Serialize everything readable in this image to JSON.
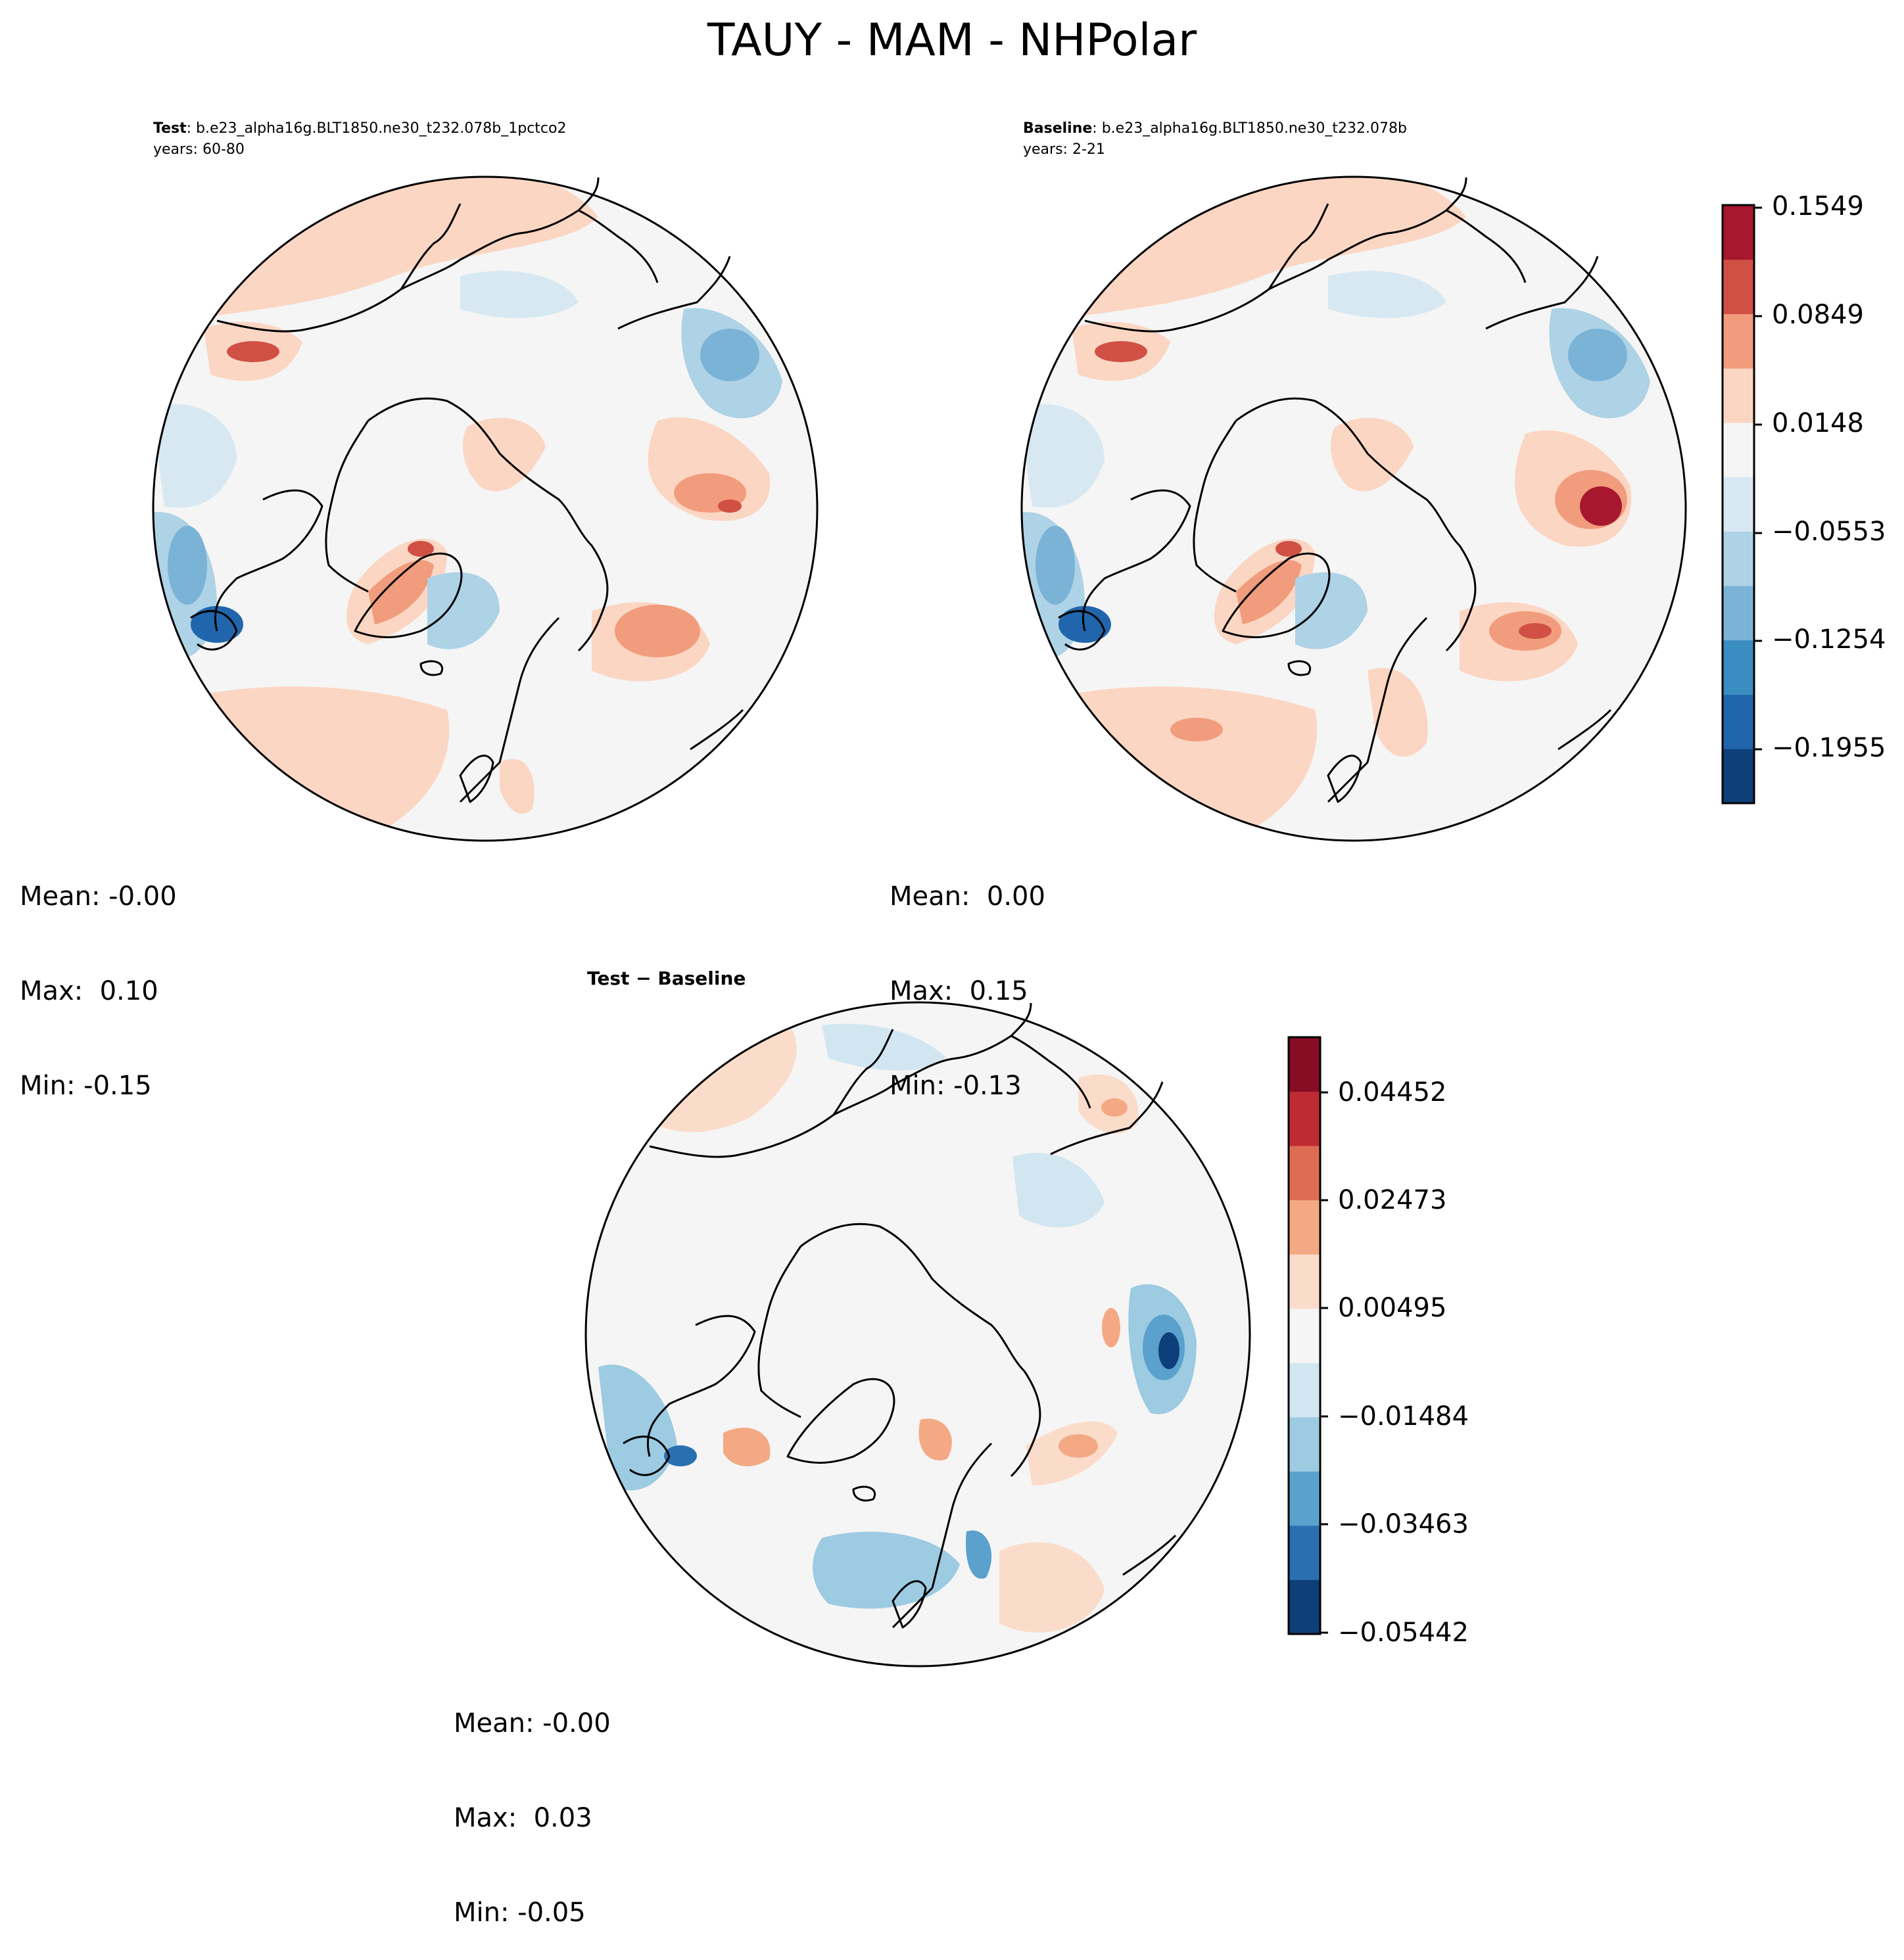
{
  "title": "TAUY - MAM - NHPolar",
  "panels": [
    {
      "id": "test",
      "label_bold": "Test",
      "label_rest": ": b.e23_alpha16g.BLT1850.ne30_t232.078b_1pctco2",
      "years": "years: 60-80",
      "stats": {
        "mean": "Mean: -0.00",
        "max": "Max:  0.10",
        "min": "Min: -0.15"
      }
    },
    {
      "id": "baseline",
      "label_bold": "Baseline",
      "label_rest": ": b.e23_alpha16g.BLT1850.ne30_t232.078b",
      "years": "years: 2-21",
      "stats": {
        "mean": "Mean:  0.00",
        "max": "Max:  0.15",
        "min": "Min: -0.13"
      }
    },
    {
      "id": "diff",
      "label": "Test − Baseline",
      "stats": {
        "mean": "Mean: -0.00",
        "max": "Max:  0.03",
        "min": "Min: -0.05"
      }
    }
  ],
  "colorbars": {
    "main": {
      "ticks": [
        "0.1549",
        "0.0849",
        "0.0148",
        "−0.0553",
        "−0.1254",
        "−0.1955"
      ],
      "colors": [
        "#0d3f7a",
        "#2166ac",
        "#3a8dc1",
        "#7ab3d6",
        "#aed2e6",
        "#d7e8f2",
        "#f5f5f5",
        "#fbd6c3",
        "#f19c7c",
        "#d05045",
        "#a7172d"
      ]
    },
    "diff": {
      "ticks": [
        "0.04452",
        "0.02473",
        "0.00495",
        "−0.01484",
        "−0.03463",
        "−0.05442"
      ],
      "colors": [
        "#0d3f7a",
        "#2a6fb0",
        "#5aa1cd",
        "#9ccbe2",
        "#d2e6f1",
        "#f5f5f5",
        "#fbdcca",
        "#f4a984",
        "#de6c54",
        "#bf2b33",
        "#870d24"
      ]
    }
  }
}
